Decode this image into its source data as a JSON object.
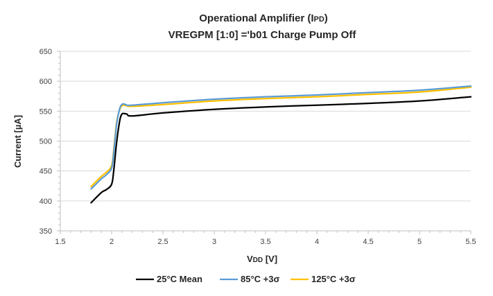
{
  "chart_data": {
    "type": "line",
    "title": "Operational Amplifier (IPD)",
    "title_line1_prefix": "Operational Amplifier (I",
    "title_line1_sub": "PD",
    "title_line1_suffix": ")",
    "subtitle": "VREGPM [1:0] ='b01 Charge Pump Off",
    "xlabel": "VDD [V]",
    "xlabel_main": "V",
    "xlabel_sub": "DD",
    "xlabel_suffix": " [V]",
    "ylabel": "Current [µA]",
    "xlim": [
      1.5,
      5.5
    ],
    "ylim": [
      350,
      650
    ],
    "x_ticks": [
      1.5,
      2,
      2.5,
      3,
      3.5,
      4,
      4.5,
      5,
      5.5
    ],
    "x_tick_labels": [
      "1.5",
      "2",
      "2.5",
      "3",
      "3.5",
      "4",
      "4.5",
      "5",
      "5.5"
    ],
    "y_ticks": [
      350,
      400,
      450,
      500,
      550,
      600,
      650
    ],
    "y_tick_labels": [
      "350",
      "400",
      "450",
      "500",
      "550",
      "600",
      "650"
    ],
    "grid": "horizontal",
    "legend_position": "bottom",
    "series": [
      {
        "name": "25°C Mean",
        "color": "#000000",
        "x": [
          1.8,
          1.9,
          1.95,
          2.0,
          2.02,
          2.05,
          2.08,
          2.1,
          2.12,
          2.15,
          2.2,
          2.5,
          3.0,
          3.5,
          4.0,
          4.5,
          5.0,
          5.5
        ],
        "y": [
          397,
          414,
          419,
          428,
          450,
          500,
          535,
          545,
          546,
          545,
          542,
          547,
          553,
          557,
          560,
          563,
          567,
          574
        ]
      },
      {
        "name": "85°C +3σ",
        "color": "#5b9bd5",
        "x": [
          1.8,
          1.9,
          1.95,
          2.0,
          2.02,
          2.05,
          2.08,
          2.1,
          2.12,
          2.15,
          2.2,
          2.5,
          3.0,
          3.5,
          4.0,
          4.5,
          5.0,
          5.5
        ],
        "y": [
          420,
          437,
          444,
          455,
          480,
          530,
          555,
          561,
          562,
          560,
          560,
          564,
          570,
          574,
          577,
          581,
          585,
          592
        ]
      },
      {
        "name": "125°C +3σ",
        "color": "#ffc000",
        "x": [
          1.8,
          1.9,
          1.95,
          2.0,
          2.02,
          2.05,
          2.08,
          2.1,
          2.12,
          2.15,
          2.2,
          2.5,
          3.0,
          3.5,
          4.0,
          4.5,
          5.0,
          5.5
        ],
        "y": [
          424,
          441,
          448,
          459,
          485,
          533,
          553,
          559,
          560,
          559,
          558,
          561,
          567,
          571,
          574,
          578,
          582,
          590
        ]
      }
    ]
  }
}
